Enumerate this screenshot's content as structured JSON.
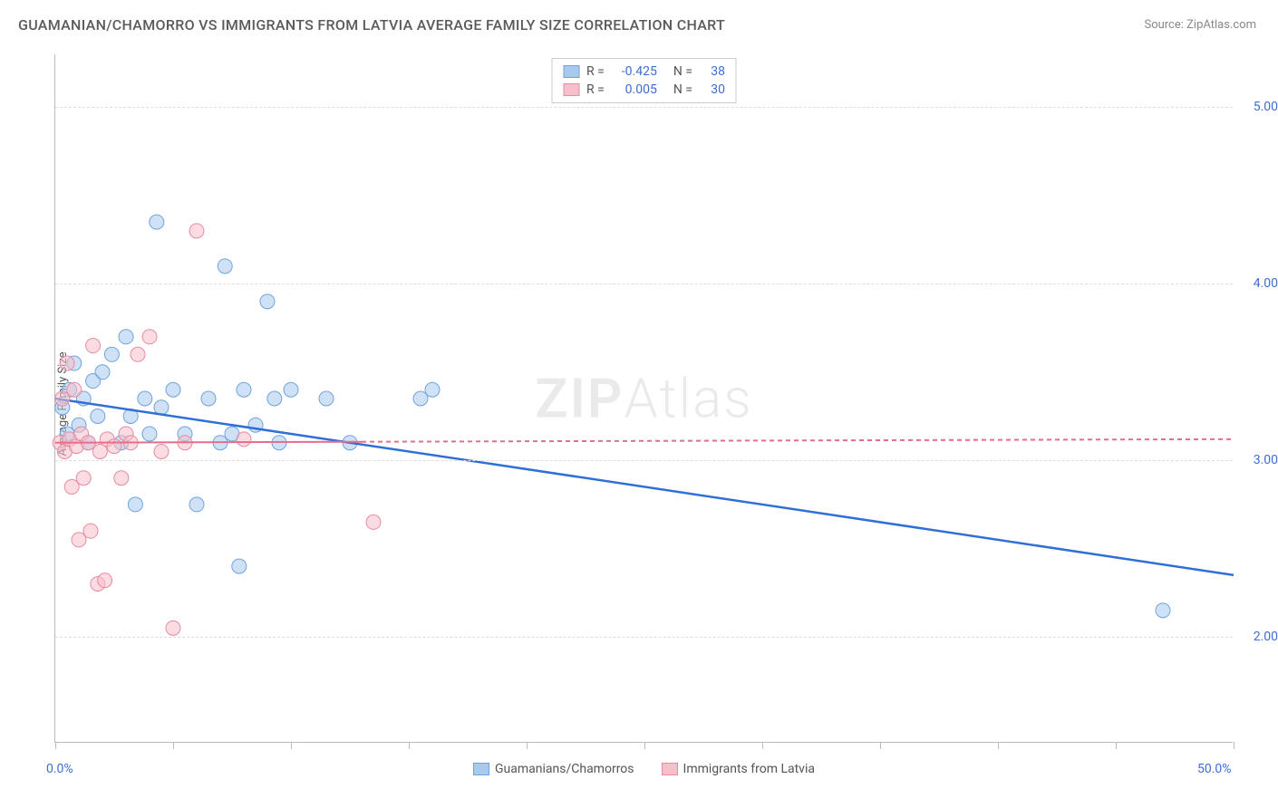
{
  "title": "GUAMANIAN/CHAMORRO VS IMMIGRANTS FROM LATVIA AVERAGE FAMILY SIZE CORRELATION CHART",
  "source": "Source: ZipAtlas.com",
  "y_axis_label": "Average Family Size",
  "watermark_a": "ZIP",
  "watermark_b": "Atlas",
  "chart": {
    "type": "scatter",
    "background_color": "#ffffff",
    "grid_color": "#dddddd",
    "axis_color": "#bbbbbb",
    "text_color": "#555555",
    "value_color": "#3b6fd6",
    "xlim": [
      0,
      50
    ],
    "ylim": [
      1.4,
      5.3
    ],
    "x_ticks": [
      0,
      5,
      10,
      15,
      20,
      25,
      30,
      35,
      40,
      45,
      50
    ],
    "x_tick_labels": {
      "0": "0.0%",
      "50": "50.0%"
    },
    "y_ticks": [
      2.0,
      3.0,
      4.0,
      5.0
    ],
    "y_tick_labels": [
      "2.00",
      "3.00",
      "4.00",
      "5.00"
    ],
    "series": [
      {
        "name": "Guamanians/Chamorros",
        "color_fill": "#a8c8ec",
        "color_stroke": "#6fa3e0",
        "marker_radius": 8,
        "fill_opacity": 0.55,
        "R": "-0.425",
        "N": "38",
        "trend": {
          "x1": 0,
          "y1": 3.35,
          "x2": 50,
          "y2": 2.35,
          "color": "#2f6fd6",
          "width": 2.5,
          "dash": "none"
        },
        "points": [
          [
            0.3,
            3.3
          ],
          [
            0.5,
            3.15
          ],
          [
            0.6,
            3.4
          ],
          [
            0.8,
            3.55
          ],
          [
            1.0,
            3.2
          ],
          [
            1.2,
            3.35
          ],
          [
            1.4,
            3.1
          ],
          [
            1.6,
            3.45
          ],
          [
            1.8,
            3.25
          ],
          [
            2.0,
            3.5
          ],
          [
            2.4,
            3.6
          ],
          [
            2.8,
            3.1
          ],
          [
            3.0,
            3.7
          ],
          [
            3.2,
            3.25
          ],
          [
            3.4,
            2.75
          ],
          [
            3.8,
            3.35
          ],
          [
            4.0,
            3.15
          ],
          [
            4.3,
            4.35
          ],
          [
            4.5,
            3.3
          ],
          [
            5.0,
            3.4
          ],
          [
            5.5,
            3.15
          ],
          [
            6.0,
            2.75
          ],
          [
            6.5,
            3.35
          ],
          [
            7.0,
            3.1
          ],
          [
            7.2,
            4.1
          ],
          [
            7.5,
            3.15
          ],
          [
            7.8,
            2.4
          ],
          [
            8.0,
            3.4
          ],
          [
            8.5,
            3.2
          ],
          [
            9.0,
            3.9
          ],
          [
            9.3,
            3.35
          ],
          [
            9.5,
            3.1
          ],
          [
            10.0,
            3.4
          ],
          [
            11.5,
            3.35
          ],
          [
            12.5,
            3.1
          ],
          [
            15.5,
            3.35
          ],
          [
            16.0,
            3.4
          ],
          [
            47.0,
            2.15
          ]
        ]
      },
      {
        "name": "Immigrants from Latvia",
        "color_fill": "#f5c0cb",
        "color_stroke": "#e88ba1",
        "marker_radius": 8,
        "fill_opacity": 0.55,
        "R": "0.005",
        "N": "30",
        "trend": {
          "x1": 0,
          "y1": 3.1,
          "x2": 50,
          "y2": 3.12,
          "color": "#e36f8a",
          "width": 2,
          "dash": "5,4"
        },
        "trend_solid_until": 13,
        "points": [
          [
            0.2,
            3.1
          ],
          [
            0.3,
            3.35
          ],
          [
            0.4,
            3.05
          ],
          [
            0.5,
            3.55
          ],
          [
            0.6,
            3.12
          ],
          [
            0.7,
            2.85
          ],
          [
            0.8,
            3.4
          ],
          [
            0.9,
            3.08
          ],
          [
            1.0,
            2.55
          ],
          [
            1.1,
            3.15
          ],
          [
            1.2,
            2.9
          ],
          [
            1.4,
            3.1
          ],
          [
            1.5,
            2.6
          ],
          [
            1.6,
            3.65
          ],
          [
            1.8,
            2.3
          ],
          [
            1.9,
            3.05
          ],
          [
            2.1,
            2.32
          ],
          [
            2.2,
            3.12
          ],
          [
            2.5,
            3.08
          ],
          [
            2.8,
            2.9
          ],
          [
            3.0,
            3.15
          ],
          [
            3.2,
            3.1
          ],
          [
            3.5,
            3.6
          ],
          [
            4.0,
            3.7
          ],
          [
            4.5,
            3.05
          ],
          [
            5.0,
            2.05
          ],
          [
            5.5,
            3.1
          ],
          [
            6.0,
            4.3
          ],
          [
            8.0,
            3.12
          ],
          [
            13.5,
            2.65
          ]
        ]
      }
    ]
  },
  "legend_top_labels": {
    "R": "R =",
    "N": "N ="
  }
}
